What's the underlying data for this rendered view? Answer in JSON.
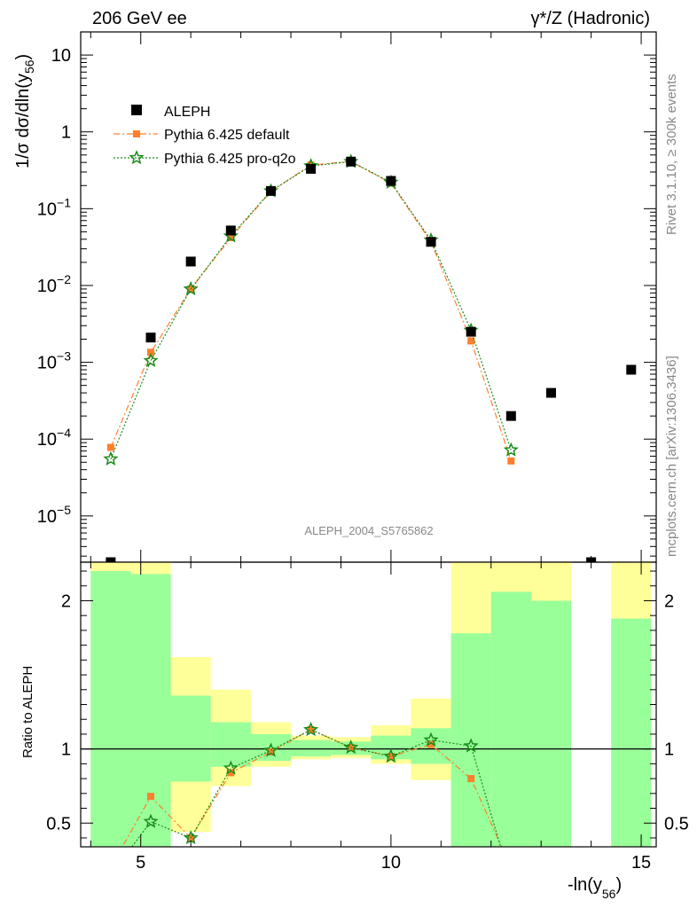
{
  "header": {
    "left": "206 GeV ee",
    "right": "γ*/Z (Hadronic)"
  },
  "side_labels": {
    "top": "Rivet 3.1.10, ≥ 300k events",
    "bottom": "mcplots.cern.ch [arXiv:1306.3436]"
  },
  "analysis_tag": "ALEPH_2004_S5765862",
  "colors": {
    "data": "#000000",
    "default": "#ff7f2a",
    "proq2o": "#1a8c1a",
    "band_stat": "#99ff99",
    "band_tot": "#ffff99"
  },
  "chart_data": [
    {
      "type": "scatter",
      "title": "",
      "ylabel": "1/σ  dσ/dln(y56)",
      "xlabel": "-ln(y56)",
      "xlim": [
        3.8,
        15.3
      ],
      "ylim": [
        2.5e-06,
        20
      ],
      "yscale": "log",
      "legend_position": "top-left",
      "legend": [
        "ALEPH",
        "Pythia 6.425 default",
        "Pythia 6.425 pro-q2o"
      ],
      "series": [
        {
          "name": "ALEPH",
          "points": [
            [
              4.4,
              2.5e-06
            ],
            [
              5.2,
              0.0021
            ],
            [
              6.0,
              0.0205
            ],
            [
              6.8,
              0.052
            ],
            [
              7.6,
              0.17
            ],
            [
              8.4,
              0.33
            ],
            [
              9.2,
              0.41
            ],
            [
              10.0,
              0.23
            ],
            [
              10.8,
              0.037
            ],
            [
              11.6,
              0.0025
            ],
            [
              12.4,
              0.0002
            ],
            [
              13.2,
              0.0004
            ],
            [
              14.0,
              2.5e-06
            ],
            [
              14.8,
              0.0008
            ]
          ]
        },
        {
          "name": "Pythia 6.425 default",
          "points": [
            [
              4.4,
              7.8e-05
            ],
            [
              5.2,
              0.00135
            ],
            [
              6.0,
              0.009
            ],
            [
              6.8,
              0.042
            ],
            [
              7.6,
              0.168
            ],
            [
              8.4,
              0.37
            ],
            [
              9.2,
              0.41
            ],
            [
              10.0,
              0.215
            ],
            [
              10.8,
              0.037
            ],
            [
              11.6,
              0.0019
            ],
            [
              12.4,
              5.2e-05
            ]
          ]
        },
        {
          "name": "Pythia 6.425 pro-q2o",
          "points": [
            [
              4.4,
              5.5e-05
            ],
            [
              5.2,
              0.00105
            ],
            [
              6.0,
              0.009
            ],
            [
              6.8,
              0.044
            ],
            [
              7.6,
              0.17
            ],
            [
              8.4,
              0.36
            ],
            [
              9.2,
              0.41
            ],
            [
              10.0,
              0.22
            ],
            [
              10.8,
              0.039
            ],
            [
              11.6,
              0.0026
            ],
            [
              12.4,
              7.2e-05
            ]
          ]
        }
      ]
    },
    {
      "type": "line",
      "ylabel": "Ratio to ALEPH",
      "xlabel": "-ln(y56)",
      "xlim": [
        3.8,
        15.3
      ],
      "ylim": [
        0.34,
        2.26
      ],
      "yticks": [
        0.5,
        1,
        2
      ],
      "xticks": [
        5,
        10,
        15
      ],
      "bands": [
        {
          "x0": 4.0,
          "x1": 4.8,
          "tot": [
            0.34,
            2.26
          ],
          "stat": [
            0.34,
            2.2
          ]
        },
        {
          "x0": 4.8,
          "x1": 5.6,
          "tot": [
            0.34,
            2.26
          ],
          "stat": [
            0.34,
            2.18
          ]
        },
        {
          "x0": 5.6,
          "x1": 6.4,
          "tot": [
            0.44,
            1.62
          ],
          "stat": [
            0.78,
            1.36
          ]
        },
        {
          "x0": 6.4,
          "x1": 7.2,
          "tot": [
            0.75,
            1.4
          ],
          "stat": [
            0.88,
            1.18
          ]
        },
        {
          "x0": 7.2,
          "x1": 8.0,
          "tot": [
            0.88,
            1.18
          ],
          "stat": [
            0.92,
            1.1
          ]
        },
        {
          "x0": 8.0,
          "x1": 8.8,
          "tot": [
            0.93,
            1.09
          ],
          "stat": [
            0.95,
            1.06
          ]
        },
        {
          "x0": 8.8,
          "x1": 9.6,
          "tot": [
            0.94,
            1.08
          ],
          "stat": [
            0.96,
            1.05
          ]
        },
        {
          "x0": 9.6,
          "x1": 10.4,
          "tot": [
            0.9,
            1.16
          ],
          "stat": [
            0.93,
            1.09
          ]
        },
        {
          "x0": 10.4,
          "x1": 11.2,
          "tot": [
            0.79,
            1.34
          ],
          "stat": [
            0.9,
            1.14
          ]
        },
        {
          "x0": 11.2,
          "x1": 12.0,
          "tot": [
            0.34,
            2.26
          ],
          "stat": [
            0.34,
            1.78
          ]
        },
        {
          "x0": 12.0,
          "x1": 12.8,
          "tot": [
            0.34,
            2.26
          ],
          "stat": [
            0.34,
            2.06
          ]
        },
        {
          "x0": 12.8,
          "x1": 13.6,
          "tot": [
            0.34,
            2.26
          ],
          "stat": [
            0.34,
            2.0
          ]
        },
        {
          "x0": 14.4,
          "x1": 15.2,
          "tot": [
            0.34,
            2.26
          ],
          "stat": [
            0.34,
            1.88
          ]
        }
      ],
      "series": [
        {
          "name": "Pythia 6.425 default",
          "points": [
            [
              4.4,
              0.2
            ],
            [
              5.2,
              0.68
            ],
            [
              6.0,
              0.4
            ],
            [
              6.8,
              0.84
            ],
            [
              7.6,
              0.98
            ],
            [
              8.4,
              1.13
            ],
            [
              9.2,
              1.01
            ],
            [
              10.0,
              0.95
            ],
            [
              10.8,
              1.03
            ],
            [
              11.6,
              0.8
            ],
            [
              12.4,
              0.2
            ]
          ]
        },
        {
          "name": "Pythia 6.425 pro-q2o",
          "points": [
            [
              4.4,
              0.15
            ],
            [
              5.2,
              0.51
            ],
            [
              6.0,
              0.4
            ],
            [
              6.8,
              0.87
            ],
            [
              7.6,
              0.99
            ],
            [
              8.4,
              1.13
            ],
            [
              9.2,
              1.01
            ],
            [
              10.0,
              0.95
            ],
            [
              10.8,
              1.06
            ],
            [
              11.6,
              1.02
            ],
            [
              12.4,
              0.1
            ]
          ]
        }
      ]
    }
  ]
}
